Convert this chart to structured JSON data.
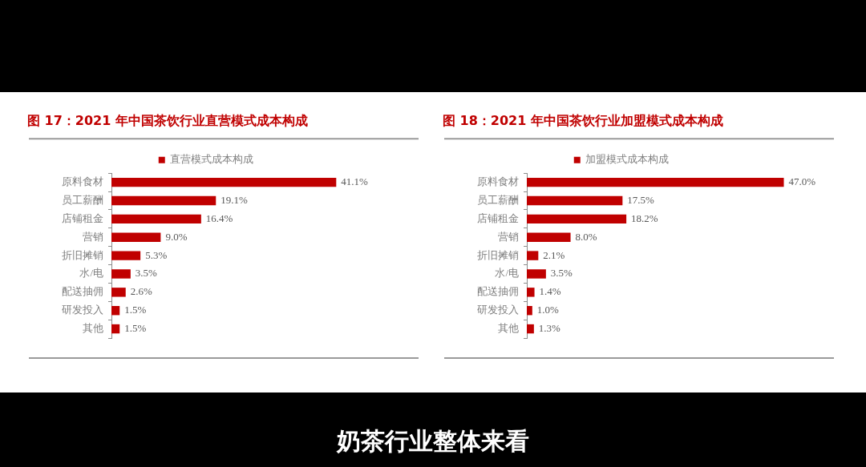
{
  "chart_data": [
    {
      "type": "bar",
      "orientation": "horizontal",
      "title": "图 17：2021 年中国茶饮行业直营模式成本构成",
      "categories": [
        "原料食材",
        "员工薪酬",
        "店铺租金",
        "营销",
        "折旧摊销",
        "水/电",
        "配送抽佣",
        "研发投入",
        "其他"
      ],
      "series": [
        {
          "name": "直营模式成本构成",
          "color": "#c00000",
          "values": [
            41.1,
            19.1,
            16.4,
            9.0,
            5.3,
            3.5,
            2.6,
            1.5,
            1.5
          ],
          "value_labels": [
            "41.1%",
            "19.1%",
            "16.4%",
            "9.0%",
            "5.3%",
            "3.5%",
            "2.6%",
            "1.5%",
            "1.5%"
          ]
        }
      ],
      "legend": "top",
      "tick_labels": "y"
    },
    {
      "type": "bar",
      "orientation": "horizontal",
      "title": "图 18：2021 年中国茶饮行业加盟模式成本构成",
      "categories": [
        "原料食材",
        "员工薪酬",
        "店铺租金",
        "营销",
        "折旧摊销",
        "水/电",
        "配送抽佣",
        "研发投入",
        "其他"
      ],
      "series": [
        {
          "name": "加盟模式成本构成",
          "color": "#c00000",
          "values": [
            47.0,
            17.5,
            18.2,
            8.0,
            2.1,
            3.5,
            1.4,
            1.0,
            1.3
          ],
          "value_labels": [
            "47.0%",
            "17.5%",
            "18.2%",
            "8.0%",
            "2.1%",
            "3.5%",
            "1.4%",
            "1.0%",
            "1.3%"
          ]
        }
      ],
      "legend": "top",
      "tick_labels": "y",
      "annotations": [
        "奶茶行业整体来看"
      ]
    }
  ]
}
